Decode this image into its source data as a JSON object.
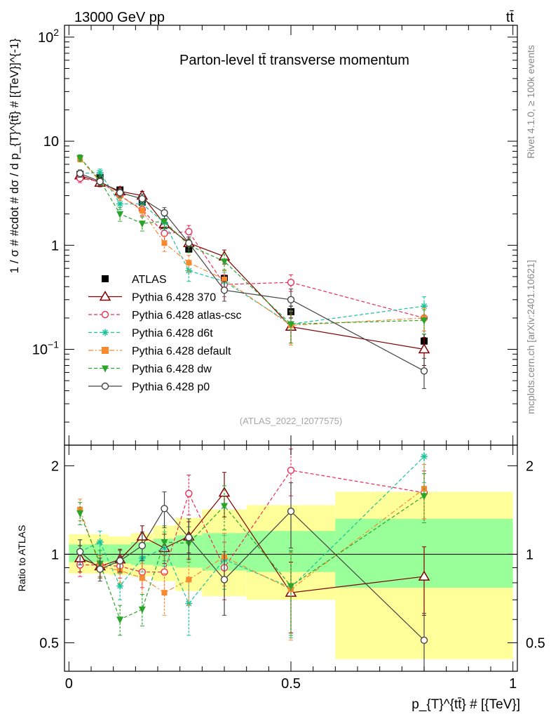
{
  "header": {
    "beam": "13000 GeV pp",
    "process": "tt̄",
    "plot_title": "Parton-level tt̄ transverse momentum",
    "analysis_id": "(ATLAS_2022_I2077575)",
    "side_rivet": "Rivet 4.1.0, ≥ 100k events",
    "side_site": "mcplots.cern.ch [arXiv:2401.10621]"
  },
  "chart_data": [
    {
      "type": "scatter",
      "panel": "main",
      "title": "Parton-level tt̄ transverse momentum",
      "ylabel": "1 / σ # #cdot # dσ / d p_{T}^{tt̄} # [{TeV}]^{-1}",
      "yscale": "log",
      "ylim": [
        0.012,
        130
      ],
      "xlim": [
        -0.01,
        1.01
      ],
      "y_tick_labels": [
        "10^{-1}",
        "1",
        "10",
        "10^{2}"
      ],
      "x": [
        0.025,
        0.07,
        0.115,
        0.165,
        0.215,
        0.27,
        0.35,
        0.5,
        0.8
      ],
      "series": [
        {
          "name": "ATLAS",
          "color": "#000000",
          "marker": "square",
          "line": "none",
          "values": [
            4.8,
            4.5,
            3.4,
            2.6,
            1.55,
            0.92,
            0.48,
            0.23,
            0.12
          ],
          "errors": [
            0.25,
            0.25,
            0.15,
            0.12,
            0.08,
            0.06,
            0.04,
            0.03,
            0.02
          ]
        },
        {
          "name": "Pythia 6.428 370",
          "color": "#7f0000",
          "marker": "triangle-open",
          "line": "solid",
          "values": [
            4.7,
            4.0,
            3.3,
            3.0,
            1.6,
            1.05,
            0.78,
            0.165,
            0.1
          ],
          "errors": [
            0.4,
            0.35,
            0.3,
            0.3,
            0.2,
            0.15,
            0.12,
            0.05,
            0.03
          ]
        },
        {
          "name": "Pythia 6.428 atlas-csc",
          "color": "#ee2b55",
          "marker": "circle-open",
          "line": "dashed",
          "values": [
            4.4,
            4.1,
            3.0,
            2.2,
            1.3,
            1.35,
            0.42,
            0.44,
            0.2
          ],
          "errors": [
            0.4,
            0.35,
            0.3,
            0.25,
            0.2,
            0.2,
            0.1,
            0.08,
            0.05
          ]
        },
        {
          "name": "Pythia 6.428 d6t",
          "color": "#19c39a",
          "marker": "star",
          "line": "dashed",
          "values": [
            4.9,
            5.0,
            2.5,
            2.5,
            1.65,
            0.57,
            0.45,
            0.175,
            0.26
          ],
          "errors": [
            0.4,
            0.4,
            0.3,
            0.3,
            0.25,
            0.12,
            0.1,
            0.06,
            0.06
          ]
        },
        {
          "name": "Pythia 6.428 default",
          "color": "#f7892e",
          "marker": "square",
          "line": "dashdot",
          "values": [
            6.8,
            4.1,
            3.0,
            2.15,
            1.05,
            0.68,
            0.47,
            0.17,
            0.2
          ],
          "errors": [
            0.5,
            0.35,
            0.3,
            0.25,
            0.18,
            0.12,
            0.1,
            0.06,
            0.05
          ]
        },
        {
          "name": "Pythia 6.428 dw",
          "color": "#2aa52a",
          "marker": "triangle-down",
          "line": "dashed",
          "values": [
            6.9,
            4.2,
            2.0,
            1.62,
            1.7,
            1.0,
            0.7,
            0.175,
            0.19
          ],
          "errors": [
            0.5,
            0.4,
            0.3,
            0.25,
            0.25,
            0.15,
            0.12,
            0.06,
            0.05
          ]
        },
        {
          "name": "Pythia 6.428 p0",
          "color": "#444444",
          "marker": "circle-open",
          "line": "solid",
          "values": [
            4.9,
            4.1,
            3.2,
            2.8,
            2.05,
            1.05,
            0.37,
            0.3,
            0.062
          ],
          "errors": [
            0.4,
            0.35,
            0.3,
            0.3,
            0.25,
            0.15,
            0.08,
            0.08,
            0.02
          ]
        }
      ]
    },
    {
      "type": "scatter",
      "panel": "ratio",
      "ylabel": "Ratio to ATLAS",
      "xlabel": "p_{T}^{tt̄} # [{TeV}]",
      "ylim": [
        0.4,
        2.35
      ],
      "xlim": [
        -0.01,
        1.01
      ],
      "y_tick_labels": [
        "0.5",
        "1",
        "2"
      ],
      "x_tick_labels": [
        "0",
        "0.5",
        "1"
      ],
      "x_ticks": [
        0,
        0.5,
        1
      ],
      "band_edges": [
        0,
        0.05,
        0.09,
        0.14,
        0.19,
        0.24,
        0.3,
        0.4,
        0.6,
        1.0
      ],
      "band_inner": [
        [
          0.94,
          1.08
        ],
        [
          0.94,
          1.08
        ],
        [
          0.93,
          1.08
        ],
        [
          0.92,
          1.1
        ],
        [
          0.91,
          1.13
        ],
        [
          0.9,
          1.16
        ],
        [
          0.88,
          1.18
        ],
        [
          0.87,
          1.2
        ],
        [
          0.77,
          1.32
        ]
      ],
      "band_outer": [
        [
          0.86,
          1.17
        ],
        [
          0.86,
          1.17
        ],
        [
          0.85,
          1.15
        ],
        [
          0.84,
          1.18
        ],
        [
          0.81,
          1.25
        ],
        [
          0.75,
          1.33
        ],
        [
          0.72,
          1.42
        ],
        [
          0.7,
          1.47
        ],
        [
          0.44,
          1.63
        ]
      ],
      "x": [
        0.025,
        0.07,
        0.115,
        0.165,
        0.215,
        0.27,
        0.35,
        0.5,
        0.8
      ],
      "series": [
        {
          "name": "Pythia 6.428 370",
          "color": "#7f0000",
          "marker": "triangle-open",
          "values": [
            0.97,
            0.91,
            0.96,
            1.15,
            1.05,
            1.15,
            1.62,
            0.74,
            0.84
          ],
          "errors": [
            0.1,
            0.08,
            0.08,
            0.1,
            0.12,
            0.14,
            0.28,
            0.2,
            0.22
          ]
        },
        {
          "name": "Pythia 6.428 atlas-csc",
          "color": "#ee2b55",
          "marker": "circle-open",
          "values": [
            0.92,
            0.92,
            0.91,
            0.87,
            0.87,
            1.61,
            0.9,
            1.93,
            1.62
          ],
          "errors": [
            0.08,
            0.08,
            0.08,
            0.1,
            0.12,
            0.25,
            0.2,
            0.35,
            0.3
          ]
        },
        {
          "name": "Pythia 6.428 d6t",
          "color": "#19c39a",
          "marker": "star",
          "values": [
            1.02,
            1.1,
            0.78,
            0.97,
            1.05,
            0.68,
            0.96,
            0.77,
            2.15
          ],
          "errors": [
            0.1,
            0.1,
            0.08,
            0.1,
            0.14,
            0.15,
            0.2,
            0.25,
            0.4
          ]
        },
        {
          "name": "Pythia 6.428 default",
          "color": "#f7892e",
          "marker": "square",
          "values": [
            1.42,
            0.91,
            0.88,
            0.83,
            0.74,
            0.82,
            0.98,
            0.76,
            1.67
          ],
          "errors": [
            0.12,
            0.08,
            0.08,
            0.1,
            0.12,
            0.15,
            0.2,
            0.25,
            0.35
          ]
        },
        {
          "name": "Pythia 6.428 dw",
          "color": "#2aa52a",
          "marker": "triangle-down",
          "values": [
            1.38,
            0.93,
            0.6,
            0.65,
            1.1,
            1.09,
            1.46,
            0.78,
            1.58
          ],
          "errors": [
            0.12,
            0.1,
            0.07,
            0.08,
            0.15,
            0.15,
            0.25,
            0.25,
            0.3
          ]
        },
        {
          "name": "Pythia 6.428 p0",
          "color": "#444444",
          "marker": "circle-open",
          "values": [
            1.02,
            0.89,
            0.95,
            1.07,
            1.43,
            1.14,
            0.82,
            1.4,
            0.51
          ],
          "errors": [
            0.1,
            0.08,
            0.08,
            0.12,
            0.2,
            0.18,
            0.2,
            0.35,
            0.12
          ]
        }
      ]
    }
  ]
}
